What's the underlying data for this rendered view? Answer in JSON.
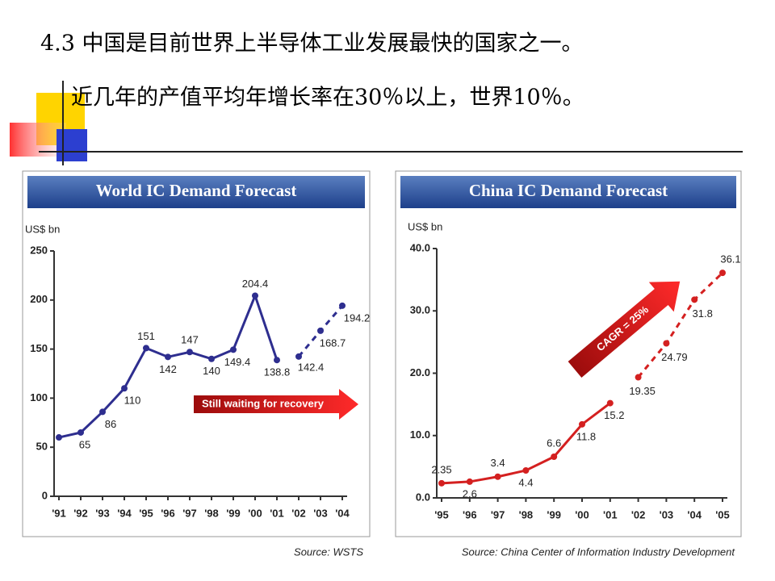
{
  "header": {
    "line1": "4.3 中国是目前世界上半导体工业发展最快的国家之一。",
    "line2": "近几年的产值平均年增长率在30％以上，世界10％。"
  },
  "chart_data": [
    {
      "type": "line",
      "title": "World IC Demand Forecast",
      "ylabel": "US$ bn",
      "categories": [
        "'91",
        "'92",
        "'93",
        "'94",
        "'95",
        "'96",
        "'97",
        "'98",
        "'99",
        "'00",
        "'01",
        "'02",
        "'03",
        "'04"
      ],
      "series": [
        {
          "color": "#2e2e8f",
          "dashed": false,
          "values": [
            60,
            65,
            86,
            110,
            151,
            142,
            147,
            140,
            149.4,
            204.4,
            138.8,
            null,
            null,
            null
          ],
          "value_labels": [
            null,
            "65",
            "86",
            "110",
            "151",
            "142",
            "147",
            "140",
            "149.4",
            "204.4",
            "138.8",
            null,
            null,
            null
          ]
        },
        {
          "color": "#2e2e8f",
          "dashed": true,
          "values": [
            null,
            null,
            null,
            null,
            null,
            null,
            null,
            null,
            null,
            null,
            null,
            142.4,
            168.7,
            194.2
          ],
          "value_labels": [
            null,
            null,
            null,
            null,
            null,
            null,
            null,
            null,
            null,
            null,
            null,
            "142.4",
            "168.7",
            "194.2"
          ]
        }
      ],
      "ylim": [
        0,
        250
      ],
      "yticks": [
        0,
        50,
        100,
        150,
        200,
        250
      ],
      "annotation": "Still waiting for recovery",
      "source": "Source: WSTS"
    },
    {
      "type": "line",
      "title": "China IC Demand Forecast",
      "ylabel": "US$ bn",
      "categories": [
        "'95",
        "'96",
        "'97",
        "'98",
        "'99",
        "'00",
        "'01",
        "'02",
        "'03",
        "'04",
        "'05"
      ],
      "series": [
        {
          "color": "#d42020",
          "dashed": false,
          "values": [
            2.35,
            2.6,
            3.4,
            4.4,
            6.6,
            11.8,
            15.2,
            null,
            null,
            null,
            null
          ],
          "value_labels": [
            "2.35",
            "2.6",
            "3.4",
            "4.4",
            "6.6",
            "11.8",
            "15.2",
            null,
            null,
            null,
            null
          ]
        },
        {
          "color": "#d42020",
          "dashed": true,
          "values": [
            null,
            null,
            null,
            null,
            null,
            null,
            null,
            19.35,
            24.79,
            31.8,
            36.1
          ],
          "value_labels": [
            null,
            null,
            null,
            null,
            null,
            null,
            null,
            "19.35",
            "24.79",
            "31.8",
            "36.1"
          ]
        }
      ],
      "ylim": [
        0,
        40
      ],
      "yticks": [
        {
          "value": 0,
          "label": "0.0"
        },
        {
          "value": 10,
          "label": "10.0"
        },
        {
          "value": 20,
          "label": "20.0"
        },
        {
          "value": 30,
          "label": "30.0"
        },
        {
          "value": 40,
          "label": "40.0"
        }
      ],
      "annotation": "CAGR = 25%",
      "source": "Source: China Center of Information Industry Development"
    }
  ]
}
